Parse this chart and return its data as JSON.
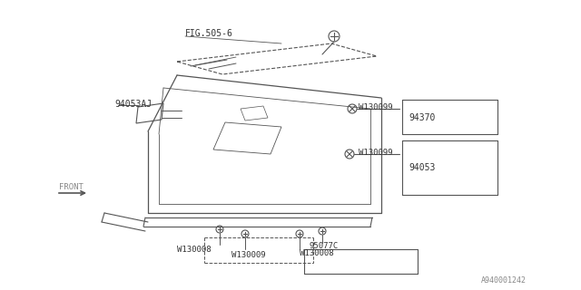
{
  "bg_color": "#ffffff",
  "line_color": "#555555",
  "text_color": "#333333",
  "title": "",
  "watermark": "A940001242",
  "labels": {
    "FIG505_6": "FIG.505-6",
    "94053AJ": "94053AJ",
    "W130099_top": "W130099",
    "94370": "94370",
    "W130099_mid": "W130099",
    "94053": "94053",
    "FRONT": "FRONT",
    "W130008_left": "W130008",
    "W130009": "W130009",
    "W130008_right": "W130008",
    "95077C": "95077C"
  }
}
